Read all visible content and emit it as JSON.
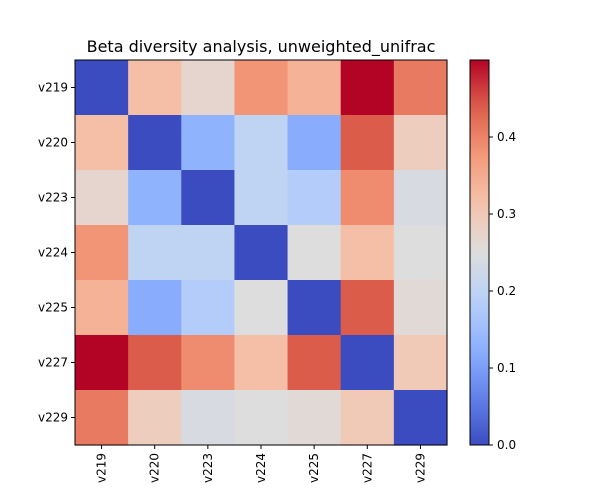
{
  "chart_data": {
    "type": "heatmap",
    "title": "Beta diversity analysis, unweighted_unifrac",
    "xlabel": "",
    "ylabel": "",
    "rows": [
      "v219",
      "v220",
      "v223",
      "v224",
      "v225",
      "v227",
      "v229"
    ],
    "cols": [
      "v219",
      "v220",
      "v223",
      "v224",
      "v225",
      "v227",
      "v229"
    ],
    "values": [
      [
        0.0,
        0.32,
        0.27,
        0.38,
        0.34,
        0.5,
        0.41
      ],
      [
        0.32,
        0.0,
        0.13,
        0.2,
        0.12,
        0.44,
        0.29
      ],
      [
        0.27,
        0.13,
        0.0,
        0.2,
        0.18,
        0.39,
        0.24
      ],
      [
        0.38,
        0.2,
        0.2,
        0.0,
        0.25,
        0.32,
        0.25
      ],
      [
        0.34,
        0.12,
        0.18,
        0.25,
        0.0,
        0.44,
        0.26
      ],
      [
        0.5,
        0.44,
        0.39,
        0.32,
        0.44,
        0.0,
        0.3
      ],
      [
        0.41,
        0.29,
        0.24,
        0.25,
        0.26,
        0.3,
        0.0
      ]
    ],
    "colormap": "coolwarm",
    "vmin": 0.0,
    "vmax": 0.5,
    "colorbar_ticks": [
      0.0,
      0.1,
      0.2,
      0.3,
      0.4
    ],
    "colorbar_tick_labels": [
      "0.0",
      "0.1",
      "0.2",
      "0.3",
      "0.4"
    ],
    "grid": false
  }
}
